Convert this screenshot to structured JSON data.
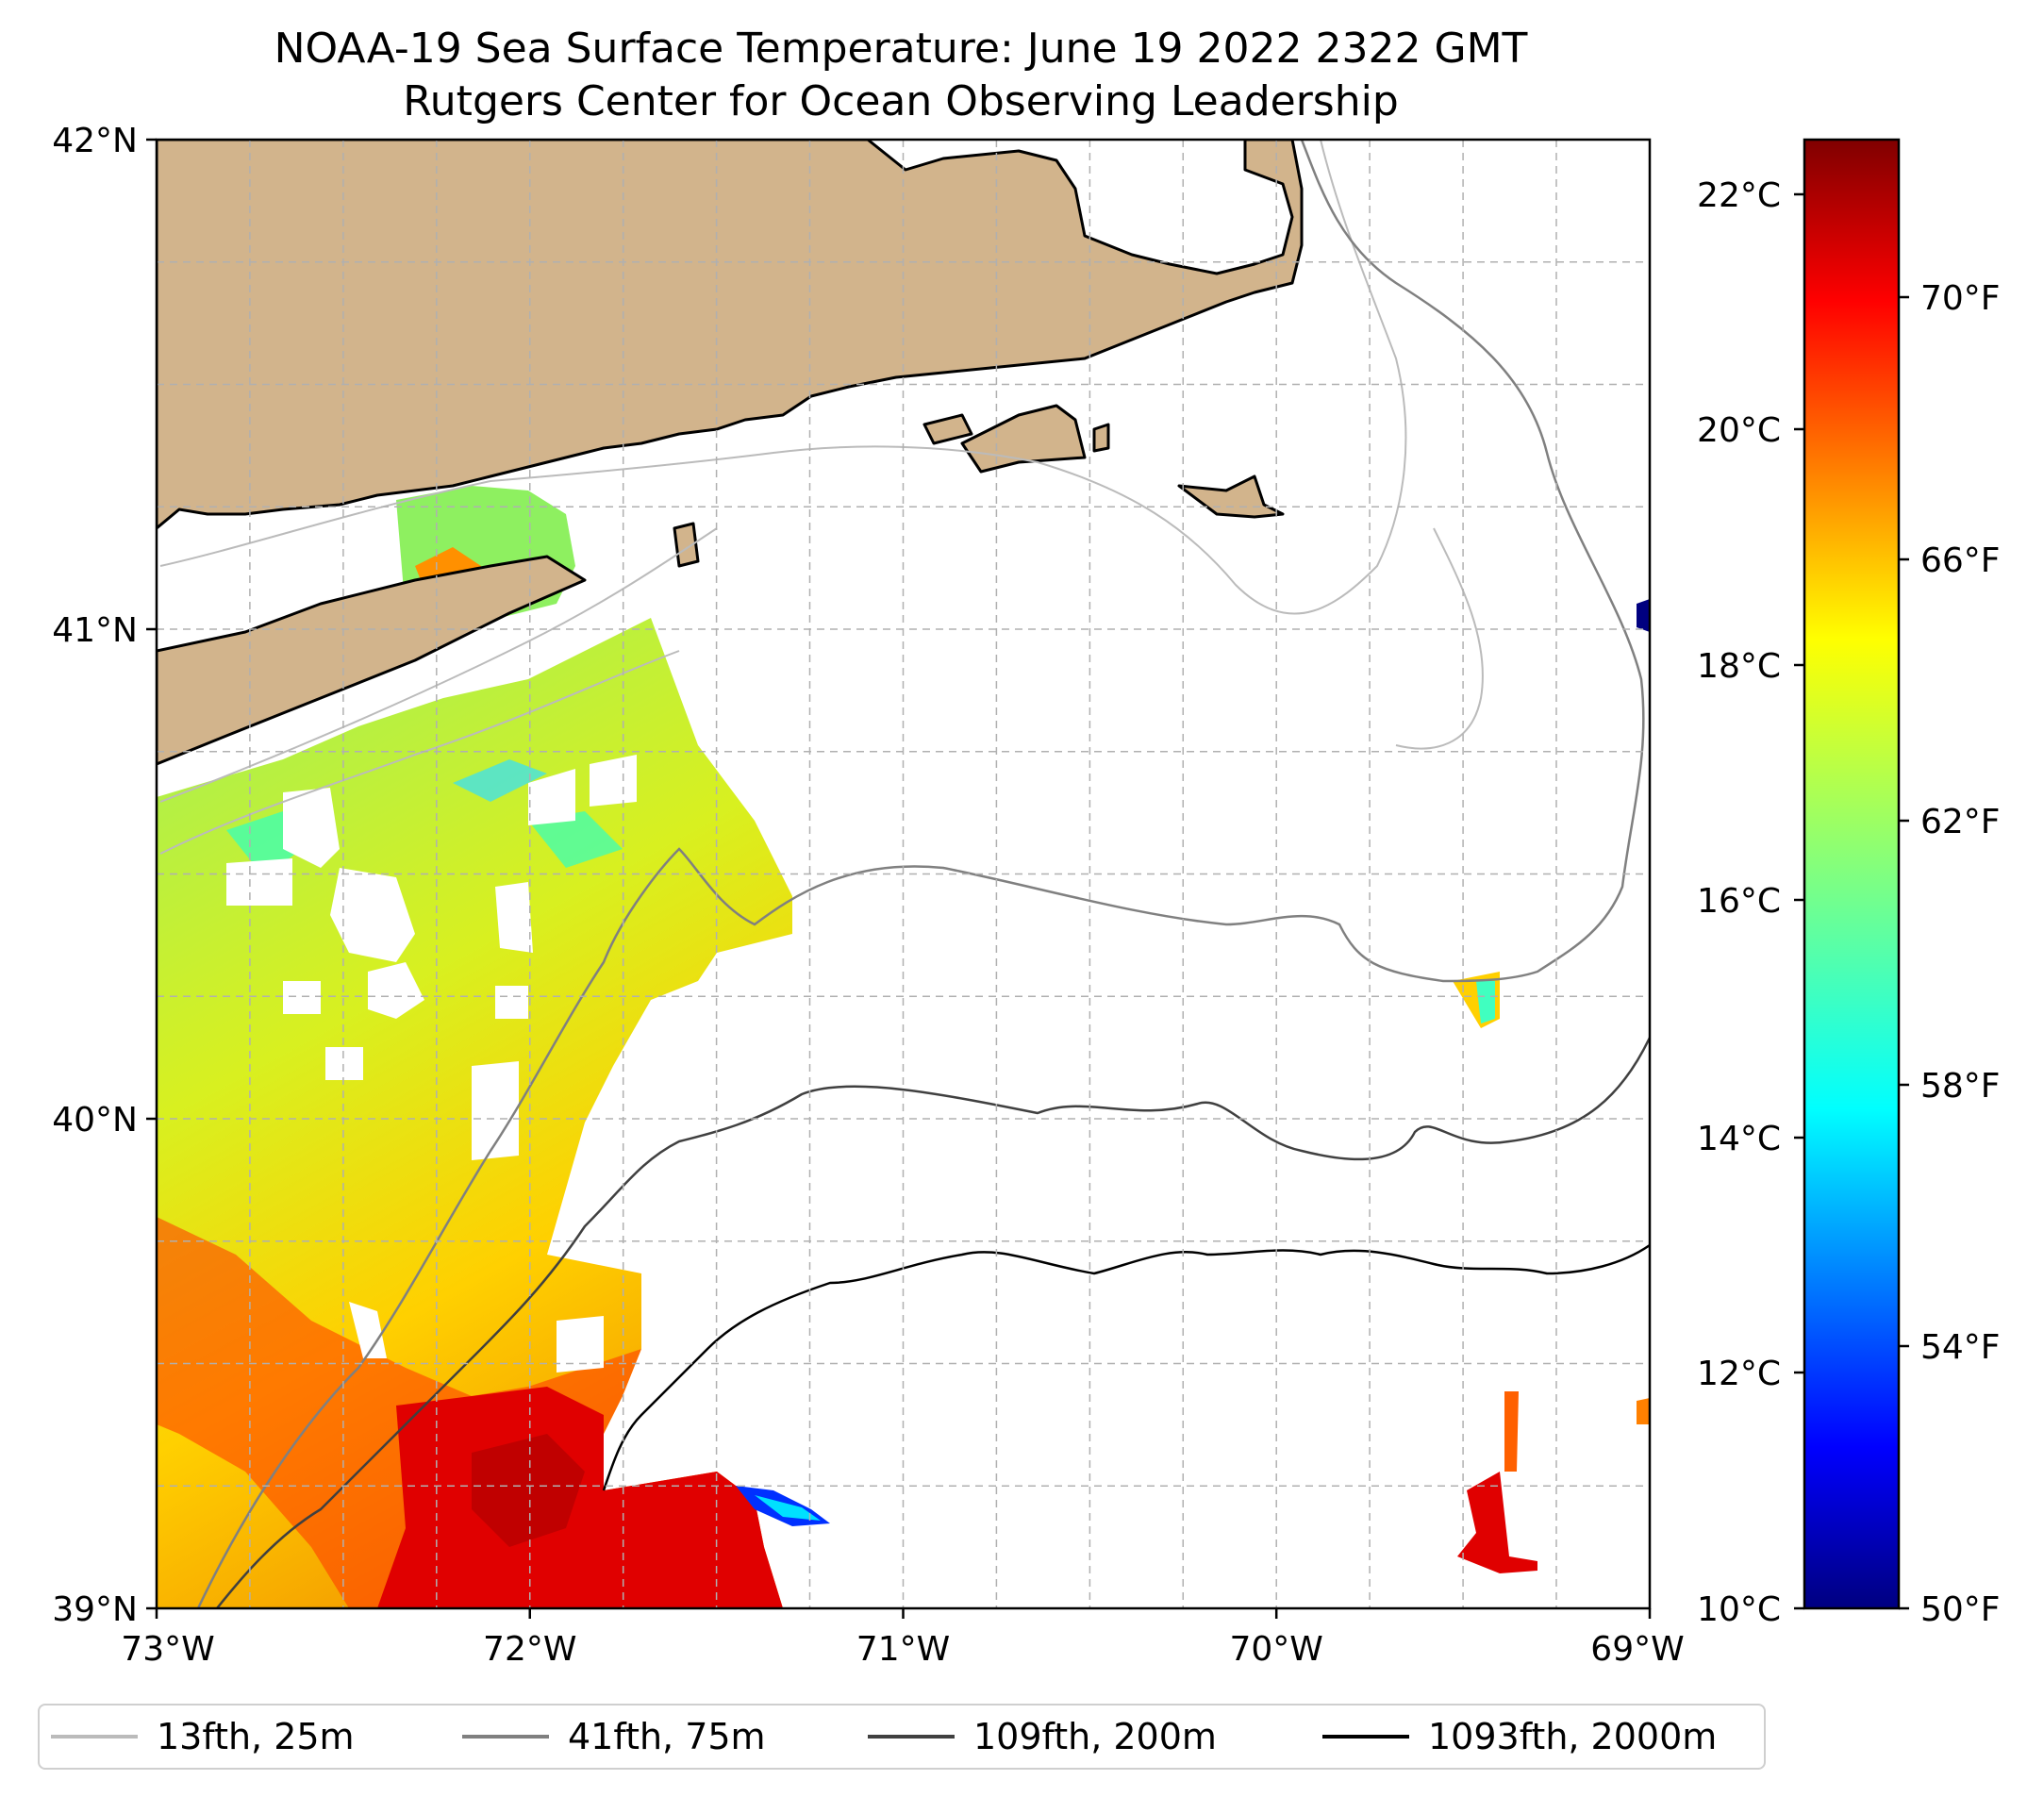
{
  "title": {
    "line1": "NOAA-19 Sea Surface Temperature: June 19 2022 2322 GMT",
    "line2": "Rutgers Center for Ocean Observing Leadership"
  },
  "axes": {
    "lat_labels": [
      "42°N",
      "41°N",
      "40°N",
      "39°N"
    ],
    "lon_labels": [
      "73°W",
      "72°W",
      "71°W",
      "70°W",
      "69°W"
    ],
    "lon_range": [
      -73,
      -69
    ],
    "lat_range": [
      39,
      42
    ],
    "grid": true
  },
  "colorbar": {
    "celsius_labels": [
      "22°C",
      "20°C",
      "18°C",
      "16°C",
      "14°C",
      "12°C",
      "10°C"
    ],
    "fahrenheit_labels": [
      "70°F",
      "66°F",
      "62°F",
      "58°F",
      "54°F",
      "50°F"
    ],
    "range_c": [
      10,
      22.5
    ],
    "colormap": "jet"
  },
  "legend": [
    {
      "label": "13fth, 25m",
      "color": "#bbbbbb"
    },
    {
      "label": "41fth, 75m",
      "color": "#808080"
    },
    {
      "label": "109fth, 200m",
      "color": "#404040"
    },
    {
      "label": "1093fth, 2000m",
      "color": "#000000"
    }
  ],
  "colors": {
    "land": "#d2b48c",
    "jet_dark_blue": "#000080",
    "jet_cyan": "#00ffff",
    "jet_yellow": "#ffff00",
    "jet_red": "#ff0000",
    "jet_dark_red": "#800000"
  }
}
